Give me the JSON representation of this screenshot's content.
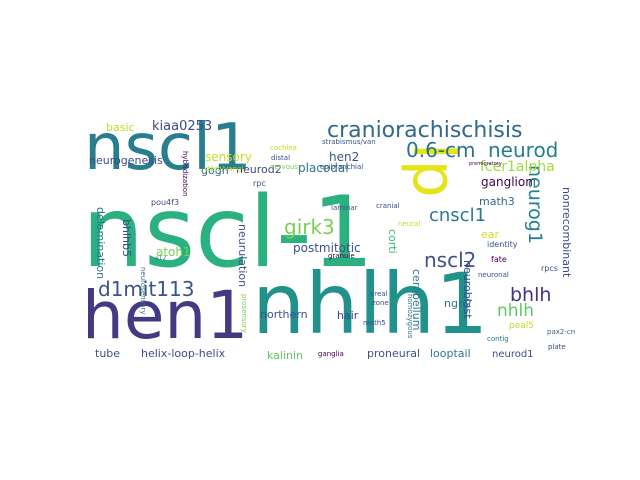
{
  "cloud": {
    "words": [
      {
        "text": "nscl-1",
        "color": "#2bb07f"
      },
      {
        "text": "nhlh1",
        "color": "#21918c"
      },
      {
        "text": "hen1",
        "color": "#443983"
      },
      {
        "text": "nscl1",
        "color": "#287d8e"
      },
      {
        "text": "lp",
        "color": "#e5e419"
      },
      {
        "text": "craniorachischisis",
        "color": "#31688e"
      },
      {
        "text": "0.6-cm",
        "color": "#2c728e"
      },
      {
        "text": "neurod",
        "color": "#287d8e"
      },
      {
        "text": "d1mit113",
        "color": "#3b528b"
      },
      {
        "text": "girk3",
        "color": "#7ad151"
      },
      {
        "text": "nscl2",
        "color": "#3b528b"
      },
      {
        "text": "neurog1",
        "color": "#26828e"
      },
      {
        "text": "cnscl1",
        "color": "#2a788e"
      },
      {
        "text": "bhlh",
        "color": "#46327e"
      },
      {
        "text": "nhlh",
        "color": "#5ec962"
      },
      {
        "text": "fcer1alpha",
        "color": "#a0da39"
      },
      {
        "text": "kiaa0253",
        "color": "#3e4989"
      },
      {
        "text": "basic",
        "color": "#bddf26"
      },
      {
        "text": "sensory",
        "color": "#c2df23"
      },
      {
        "text": "hen2",
        "color": "#3b528b"
      },
      {
        "text": "ganglion",
        "color": "#440154"
      },
      {
        "text": "math3",
        "color": "#31688e"
      },
      {
        "text": "neurogenesis",
        "color": "#3e4989"
      },
      {
        "text": "gogh",
        "color": "#2d708e"
      },
      {
        "text": "neurod2",
        "color": "#3e4989"
      },
      {
        "text": "placodal",
        "color": "#2a788e"
      },
      {
        "text": "atoh1",
        "color": "#7ad151"
      },
      {
        "text": "postmitotic",
        "color": "#3b528b"
      },
      {
        "text": "nonrecombinant",
        "color": "#3e4989"
      },
      {
        "text": "delamination",
        "color": "#2a788e"
      },
      {
        "text": "bhlhb5",
        "color": "#3e4989"
      },
      {
        "text": "neurulation",
        "color": "#3b528b"
      },
      {
        "text": "northern",
        "color": "#3b528b"
      },
      {
        "text": "hair",
        "color": "#3e4989"
      },
      {
        "text": "cerebellum",
        "color": "#2a788e"
      },
      {
        "text": "ngn2",
        "color": "#2a788e"
      },
      {
        "text": "neuroblast",
        "color": "#3e4989"
      },
      {
        "text": "corti",
        "color": "#35b779"
      },
      {
        "text": "ear",
        "color": "#d8e219"
      },
      {
        "text": "identity",
        "color": "#3b528b"
      },
      {
        "text": "fate",
        "color": "#440154"
      },
      {
        "text": "rpcs",
        "color": "#3e4989"
      },
      {
        "text": "tube",
        "color": "#3b528b"
      },
      {
        "text": "helix-loop-helix",
        "color": "#3e4989"
      },
      {
        "text": "kalinin",
        "color": "#5ec962"
      },
      {
        "text": "proneural",
        "color": "#3b528b"
      },
      {
        "text": "looptail",
        "color": "#2a788e"
      },
      {
        "text": "neurod1",
        "color": "#3e4989"
      },
      {
        "text": "peal5",
        "color": "#bddf26"
      },
      {
        "text": "pax2-cre",
        "color": "#31688e"
      },
      {
        "text": "plate",
        "color": "#3e4989"
      },
      {
        "text": "cochlea",
        "color": "#bddf26"
      },
      {
        "text": "strabismus/van",
        "color": "#3b528b"
      },
      {
        "text": "stbm/vangl",
        "color": "#bddf26"
      },
      {
        "text": "distal",
        "color": "#3e4989"
      },
      {
        "text": "nervous",
        "color": "#7ad151"
      },
      {
        "text": "epibranchial",
        "color": "#3e4989"
      },
      {
        "text": "hybridization",
        "color": "#440154"
      },
      {
        "text": "rpc",
        "color": "#3b528b"
      },
      {
        "text": "pou4f3",
        "color": "#3e4989"
      },
      {
        "text": "e12",
        "color": "#2a788e"
      },
      {
        "text": "neurosensory",
        "color": "#2a788e"
      },
      {
        "text": "laminar",
        "color": "#3b528b"
      },
      {
        "text": "cranial",
        "color": "#3e4989"
      },
      {
        "text": "neural",
        "color": "#bddf26"
      },
      {
        "text": "granule",
        "color": "#440154"
      },
      {
        "text": "prosensory",
        "color": "#7ad151"
      },
      {
        "text": "areal",
        "color": "#3b528b"
      },
      {
        "text": "zone",
        "color": "#3e4989"
      },
      {
        "text": "math5",
        "color": "#3e4989"
      },
      {
        "text": "homozygous",
        "color": "#2a788e"
      },
      {
        "text": "neuronal",
        "color": "#3e4989"
      },
      {
        "text": "contig",
        "color": "#2a788e"
      },
      {
        "text": "ganglia",
        "color": "#440154"
      },
      {
        "text": "premigratory",
        "color": "#440154"
      }
    ]
  }
}
